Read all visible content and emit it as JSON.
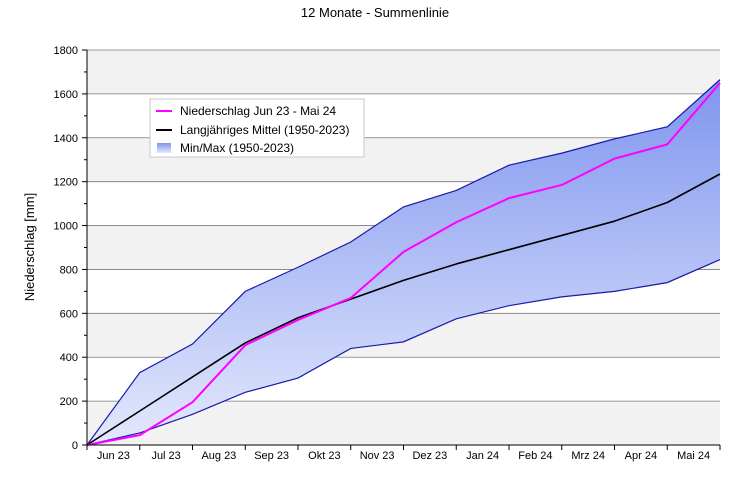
{
  "chart_data": {
    "type": "line",
    "title": "12 Monate - Summenlinie",
    "xlabel": "",
    "ylabel": "Niederschlag [mm]",
    "ylim": [
      0,
      1800
    ],
    "yticks": [
      0,
      200,
      400,
      600,
      800,
      1000,
      1200,
      1400,
      1600,
      1800
    ],
    "categories": [
      "Jun 23",
      "Jul 23",
      "Aug 23",
      "Sep 23",
      "Okt 23",
      "Nov 23",
      "Dez 23",
      "Jan 24",
      "Feb 24",
      "Mrz 24",
      "Apr 24",
      "Mai 24"
    ],
    "x": [
      0,
      1,
      2,
      3,
      4,
      5,
      6,
      7,
      8,
      9,
      10,
      11,
      12
    ],
    "series": [
      {
        "name": "Niederschlag Jun 23 - Mai 24",
        "color": "#ff00ff",
        "values": [
          0,
          45,
          195,
          455,
          570,
          670,
          880,
          1015,
          1125,
          1185,
          1305,
          1370,
          1650
        ]
      },
      {
        "name": "Langjähriges Mittel (1950-2023)",
        "color": "#000000",
        "values": [
          0,
          155,
          310,
          465,
          580,
          665,
          750,
          825,
          890,
          955,
          1020,
          1105,
          1235
        ]
      }
    ],
    "band": {
      "name": "Min/Max (1950-2023)",
      "color": "#0000cc",
      "min": [
        0,
        55,
        140,
        240,
        305,
        440,
        470,
        575,
        635,
        675,
        700,
        740,
        845
      ],
      "max": [
        0,
        330,
        460,
        700,
        810,
        925,
        1085,
        1160,
        1275,
        1330,
        1395,
        1450,
        1665
      ]
    },
    "legend": {
      "placement": "top-left",
      "entries": [
        "Niederschlag Jun 23 - Mai 24",
        "Langjähriges Mittel (1950-2023)",
        "Min/Max (1950-2023)"
      ]
    },
    "grid": true
  }
}
